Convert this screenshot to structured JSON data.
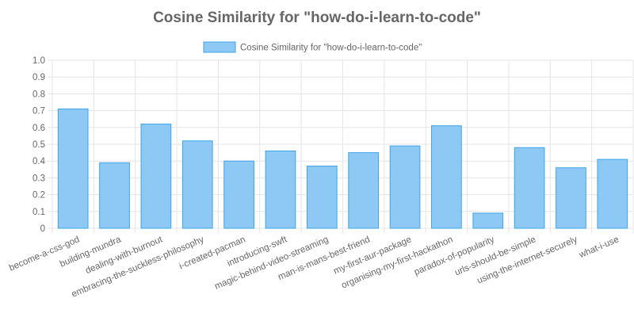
{
  "chart_data": {
    "type": "bar",
    "title": "Cosine Similarity for \"how-do-i-learn-to-code\"",
    "legend_position": "top",
    "grid": true,
    "ylim": [
      0,
      1.0
    ],
    "yticks": [
      "0",
      "0.1",
      "0.2",
      "0.3",
      "0.4",
      "0.5",
      "0.6",
      "0.7",
      "0.8",
      "0.9",
      "1.0"
    ],
    "categories": [
      "become-a-css-god",
      "building-mundra",
      "dealing-with-burnout",
      "embracing-the-suckless-philosophy",
      "i-created-pacman",
      "introducing-swft",
      "magic-behind-video-streaming",
      "man-is-mans-best-friend",
      "my-first-aur-package",
      "organising-my-first-hackathon",
      "paradox-of-popularity",
      "urls-should-be-simple",
      "using-the-internet-securely",
      "what-i-use"
    ],
    "series": [
      {
        "name": "Cosine Similarity for \"how-do-i-learn-to-code\"",
        "values": [
          0.71,
          0.39,
          0.62,
          0.52,
          0.4,
          0.46,
          0.37,
          0.45,
          0.49,
          0.61,
          0.09,
          0.48,
          0.36,
          0.41
        ]
      }
    ],
    "colors": {
      "bar_fill": "#8ec9f5",
      "bar_stroke": "#3da4e8",
      "grid": "#e5e5e5",
      "axis_text": "#666666",
      "title": "#666666"
    }
  }
}
